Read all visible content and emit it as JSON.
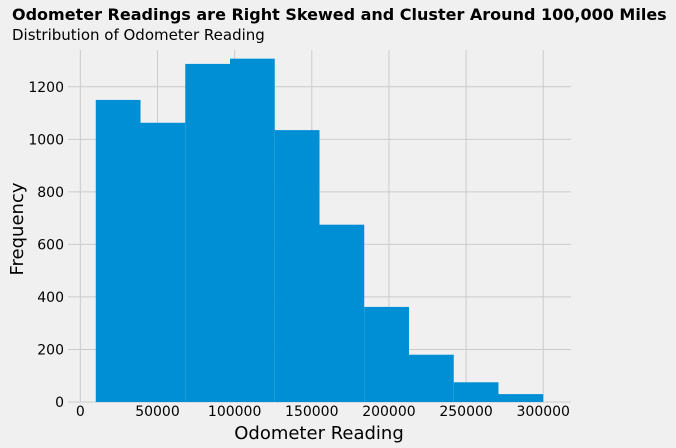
{
  "chart_data": {
    "type": "bar",
    "title": "Odometer Readings are Right Skewed and Cluster Around 100,000 Miles",
    "subtitle": "Distribution of Odometer Reading",
    "xlabel": "Odometer Reading",
    "ylabel": "Frequency",
    "bin_edges": [
      10000,
      39000,
      68000,
      97000,
      126000,
      155000,
      184000,
      213000,
      242000,
      271000,
      300000
    ],
    "values": [
      1150,
      1063,
      1287,
      1307,
      1035,
      675,
      362,
      180,
      75,
      30
    ],
    "xlim": [
      -8000,
      318000
    ],
    "ylim": [
      0,
      1340
    ],
    "xticks": [
      0,
      50000,
      100000,
      150000,
      200000,
      250000,
      300000
    ],
    "yticks": [
      0,
      200,
      400,
      600,
      800,
      1000,
      1200
    ],
    "grid": true,
    "bar_color": "#008fd5",
    "background": "#f0f0f0",
    "grid_color": "#cbcbcb"
  }
}
